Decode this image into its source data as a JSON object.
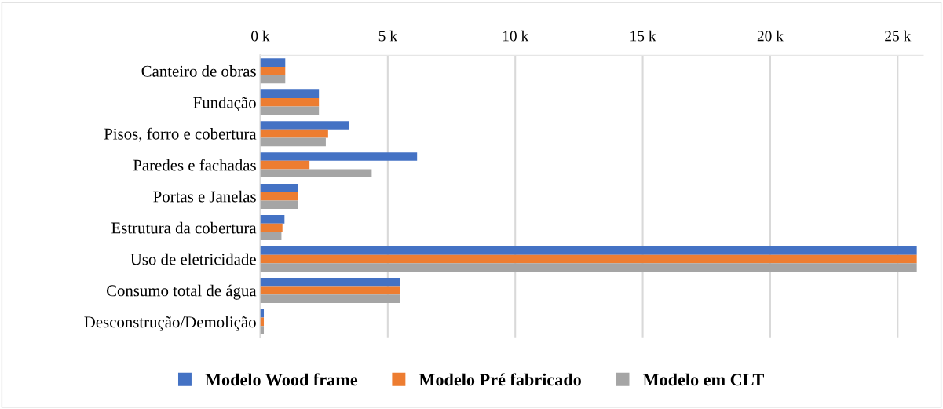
{
  "chart_data": {
    "type": "bar",
    "orientation": "horizontal",
    "categories": [
      "Canteiro de obras",
      "Fundação",
      "Pisos, forro e cobertura",
      "Paredes e fachadas",
      "Portas e Janelas",
      "Estrutura da cobertura",
      "Uso de eletricidade",
      "Consumo total de água",
      "Desconstrução/Demolição"
    ],
    "series": [
      {
        "name": "Modelo Wood frame",
        "color": "#4472c4",
        "values": [
          0.98,
          2.3,
          3.48,
          6.15,
          1.47,
          0.95,
          25.75,
          5.49,
          0.14
        ]
      },
      {
        "name": "Modelo Pré fabricado",
        "color": "#ed7d31",
        "values": [
          0.98,
          2.3,
          2.66,
          1.93,
          1.47,
          0.87,
          25.75,
          5.49,
          0.14
        ]
      },
      {
        "name": "Modelo em CLT",
        "color": "#a5a5a5",
        "values": [
          0.98,
          2.3,
          2.57,
          4.37,
          1.47,
          0.83,
          25.75,
          5.49,
          0.14
        ]
      }
    ],
    "xlim": [
      0,
      26
    ],
    "xticks": [
      {
        "value": 0,
        "label": "0 k"
      },
      {
        "value": 5,
        "label": "5 k"
      },
      {
        "value": 10,
        "label": "10 k"
      },
      {
        "value": 15,
        "label": "15 k"
      },
      {
        "value": 20,
        "label": "20 k"
      },
      {
        "value": 25,
        "label": "25 k"
      }
    ],
    "grid": "x",
    "legend": "bottom"
  }
}
